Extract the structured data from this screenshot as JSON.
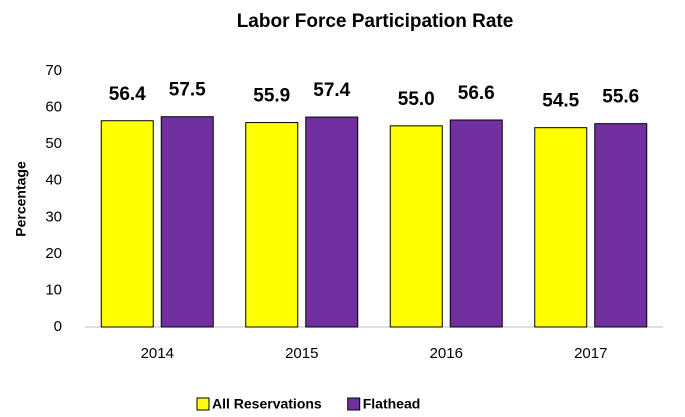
{
  "chart_data": {
    "type": "bar",
    "title": "Labor Force Participation Rate",
    "y_label": "Percentage",
    "categories": [
      "2014",
      "2015",
      "2016",
      "2017"
    ],
    "series": [
      {
        "name": "All Reservations",
        "color": "#ffff00",
        "values": [
          56.4,
          55.9,
          55.0,
          54.5
        ],
        "value_labels": [
          "56.4",
          "55.9",
          "55.0",
          "54.5"
        ]
      },
      {
        "name": "Flathead",
        "color": "#7030a0",
        "values": [
          57.5,
          57.4,
          56.6,
          55.6
        ],
        "value_labels": [
          "57.5",
          "57.4",
          "56.6",
          "55.6"
        ]
      }
    ],
    "ylim": [
      0,
      70
    ],
    "yticks": [
      0,
      10,
      20,
      30,
      40,
      50,
      60,
      70
    ],
    "grid": false,
    "legend": "bottom"
  }
}
